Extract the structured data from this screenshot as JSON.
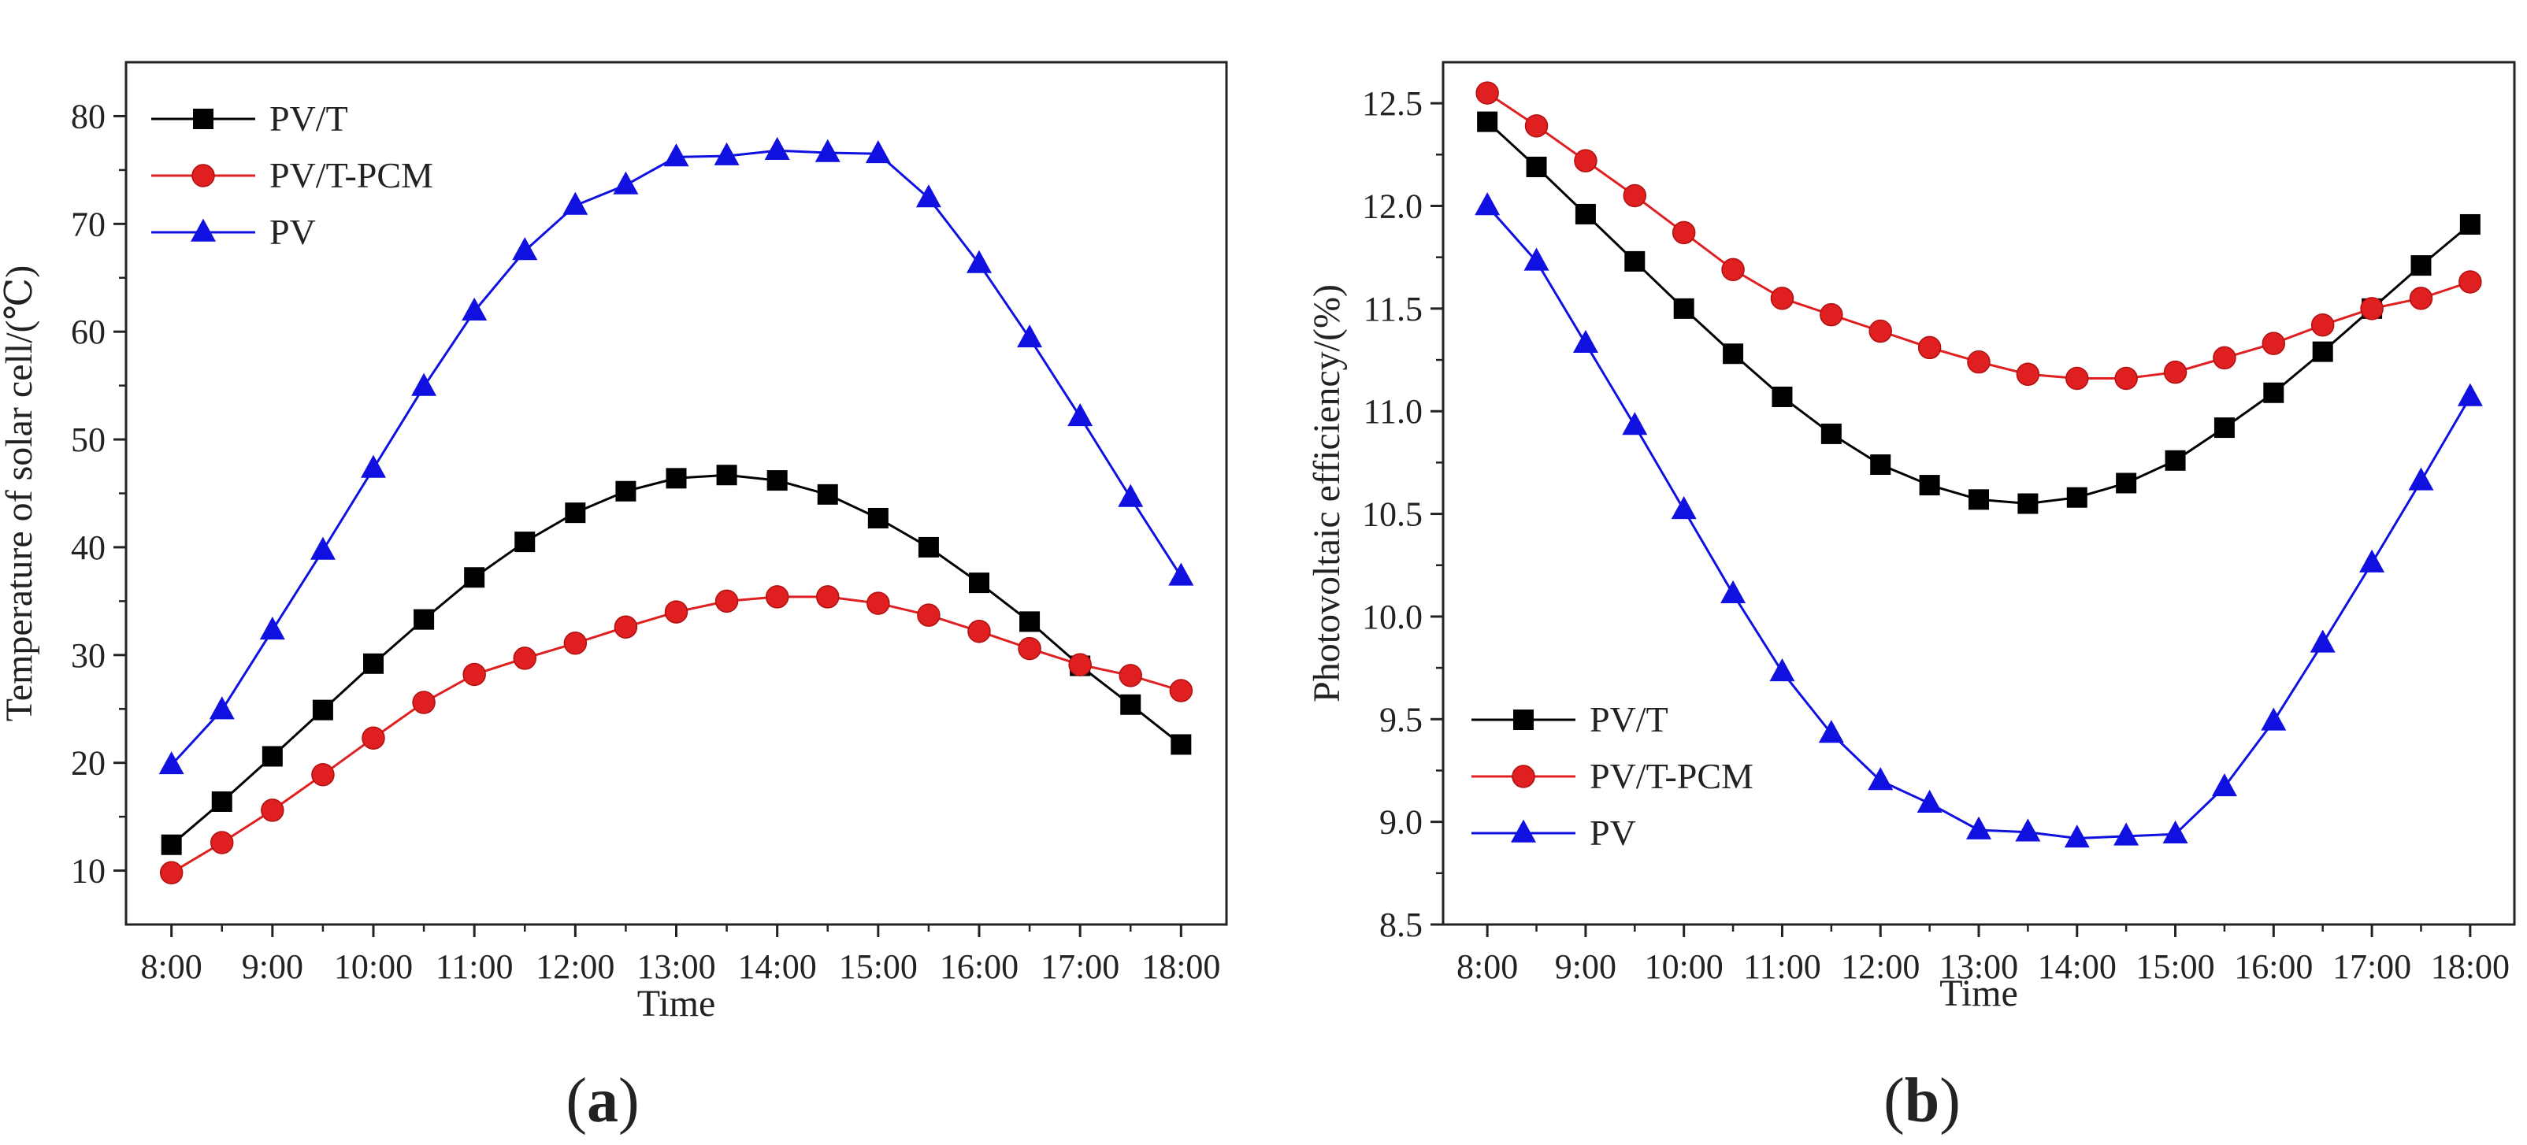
{
  "figure": {
    "panels": [
      {
        "label_open": "(",
        "label_letter": "a",
        "label_close": ")"
      },
      {
        "label_open": "(",
        "label_letter": "b",
        "label_close": ")"
      }
    ]
  },
  "chart_data": [
    {
      "type": "line",
      "panel": "a",
      "title": "",
      "xlabel": "Time",
      "ylabel": "Temperature of solar cell/(℃)",
      "ylim": [
        5,
        85
      ],
      "yticks": [
        10,
        20,
        30,
        40,
        50,
        60,
        70,
        80
      ],
      "xlim": [
        7.55,
        18.45
      ],
      "xticks": [
        8,
        9,
        10,
        11,
        12,
        13,
        14,
        15,
        16,
        17,
        18
      ],
      "xtick_labels": [
        "8:00",
        "9:00",
        "10:00",
        "11:00",
        "12:00",
        "13:00",
        "14:00",
        "15:00",
        "16:00",
        "17:00",
        "18:00"
      ],
      "legend_position": "top-left",
      "x": [
        8,
        8.5,
        9,
        9.5,
        10,
        10.5,
        11,
        11.5,
        12,
        12.5,
        13,
        13.5,
        14,
        14.5,
        15,
        15.5,
        16,
        16.5,
        17,
        17.5,
        18
      ],
      "series": [
        {
          "name": "PV/T",
          "color": "#000000",
          "marker": "square",
          "values": [
            12.4,
            16.4,
            20.6,
            24.9,
            29.2,
            33.3,
            37.2,
            40.5,
            43.2,
            45.2,
            46.4,
            46.7,
            46.2,
            44.9,
            42.7,
            40.0,
            36.7,
            33.1,
            29.0,
            25.4,
            21.7
          ]
        },
        {
          "name": "PV/T-PCM",
          "color": "#e02020",
          "marker": "circle",
          "values": [
            9.8,
            12.6,
            15.6,
            18.9,
            22.3,
            25.6,
            28.2,
            29.7,
            31.1,
            32.6,
            34.0,
            35.0,
            35.4,
            35.4,
            34.8,
            33.7,
            32.2,
            30.6,
            29.1,
            28.1,
            26.7
          ]
        },
        {
          "name": "PV",
          "color": "#1010e0",
          "marker": "triangle",
          "values": [
            19.8,
            24.9,
            32.3,
            39.7,
            47.3,
            54.9,
            61.9,
            67.5,
            71.7,
            73.6,
            76.2,
            76.3,
            76.8,
            76.6,
            76.5,
            72.4,
            66.3,
            59.4,
            52.1,
            44.6,
            37.3
          ]
        }
      ]
    },
    {
      "type": "line",
      "panel": "b",
      "title": "",
      "xlabel": "Time",
      "ylabel": "Photovoltaic efficiency/(%)",
      "ylim": [
        8.5,
        12.7
      ],
      "yticks": [
        8.5,
        9.0,
        9.5,
        10.0,
        10.5,
        11.0,
        11.5,
        12.0,
        12.5
      ],
      "ytick_labels": [
        "8.5",
        "9.0",
        "9.5",
        "10.0",
        "10.5",
        "11.0",
        "11.5",
        "12.0",
        "12.5"
      ],
      "xlim": [
        7.55,
        18.45
      ],
      "xticks": [
        8,
        9,
        10,
        11,
        12,
        13,
        14,
        15,
        16,
        17,
        18
      ],
      "xtick_labels": [
        "8:00",
        "9:00",
        "10:00",
        "11:00",
        "12:00",
        "13:00",
        "14:00",
        "15:00",
        "16:00",
        "17:00",
        "18:00"
      ],
      "legend_position": "bottom-left",
      "x": [
        8,
        8.5,
        9,
        9.5,
        10,
        10.5,
        11,
        11.5,
        12,
        12.5,
        13,
        13.5,
        14,
        14.5,
        15,
        15.5,
        16,
        16.5,
        17,
        17.5,
        18
      ],
      "series": [
        {
          "name": "PV/T",
          "color": "#000000",
          "marker": "square",
          "values": [
            12.41,
            12.19,
            11.96,
            11.73,
            11.5,
            11.28,
            11.07,
            10.89,
            10.74,
            10.64,
            10.57,
            10.55,
            10.58,
            10.65,
            10.76,
            10.92,
            11.09,
            11.29,
            11.5,
            11.71,
            11.91
          ]
        },
        {
          "name": "PV/T-PCM",
          "color": "#e02020",
          "marker": "circle",
          "values": [
            12.55,
            12.39,
            12.22,
            12.05,
            11.87,
            11.69,
            11.55,
            11.47,
            11.39,
            11.31,
            11.24,
            11.18,
            11.16,
            11.16,
            11.19,
            11.26,
            11.33,
            11.42,
            11.5,
            11.55,
            11.63
          ]
        },
        {
          "name": "PV",
          "color": "#1010e0",
          "marker": "triangle",
          "values": [
            12.0,
            11.73,
            11.33,
            10.93,
            10.52,
            10.11,
            9.73,
            9.43,
            9.2,
            9.09,
            8.96,
            8.95,
            8.92,
            8.93,
            8.94,
            9.17,
            9.49,
            9.87,
            10.26,
            10.66,
            11.07
          ]
        }
      ]
    }
  ]
}
